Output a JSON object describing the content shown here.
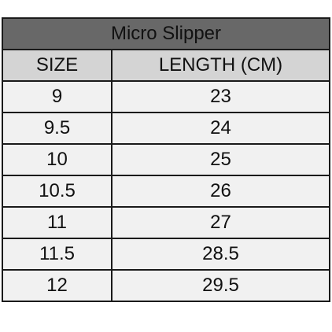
{
  "table": {
    "title": "Micro Slipper",
    "header": [
      "SIZE",
      "LENGTH (CM)"
    ],
    "rows": [
      [
        "9",
        "23"
      ],
      [
        "9.5",
        "24"
      ],
      [
        "10",
        "25"
      ],
      [
        "10.5",
        "26"
      ],
      [
        "11",
        "27"
      ],
      [
        "11.5",
        "28.5"
      ],
      [
        "12",
        "29.5"
      ]
    ]
  }
}
